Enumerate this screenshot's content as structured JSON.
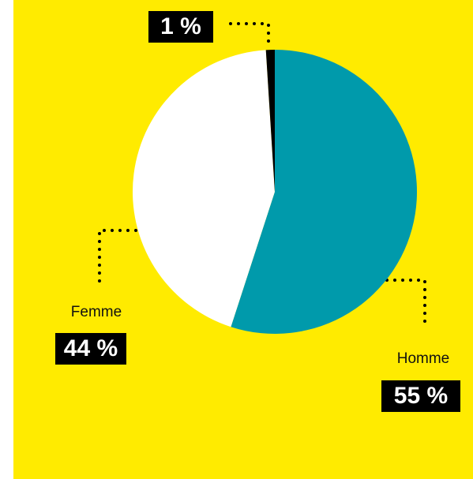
{
  "chart_data": {
    "type": "pie",
    "categories": [
      "Homme",
      "Femme",
      null
    ],
    "values": [
      55,
      44,
      1
    ],
    "value_labels": [
      "55 %",
      "44 %",
      "1 %"
    ],
    "colors": [
      "#009aab",
      "#ffffff",
      "#000000"
    ]
  }
}
